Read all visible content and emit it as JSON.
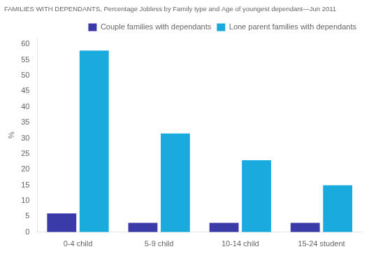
{
  "chart_data": {
    "type": "bar",
    "title": "FAMILIES WITH DEPENDANTS, Percentage Jobless by Family type and Age of youngest dependant—Jun 2011",
    "ylabel": "%",
    "categories": [
      "0-4 child",
      "5-9 child",
      "10-14 child",
      "15-24 student"
    ],
    "series": [
      {
        "name": "Couple families with dependants",
        "color": "#3a3aa8",
        "values": [
          6.0,
          3.0,
          3.0,
          3.0
        ]
      },
      {
        "name": "Lone parent families with dependants",
        "color": "#1aabde",
        "values": [
          58.0,
          31.5,
          23.0,
          15.0
        ]
      }
    ],
    "ylim": [
      0,
      62
    ],
    "yticks": [
      0,
      5,
      10,
      15,
      20,
      25,
      30,
      35,
      40,
      45,
      50,
      55,
      60
    ],
    "grid": false,
    "legend": "upper right"
  }
}
